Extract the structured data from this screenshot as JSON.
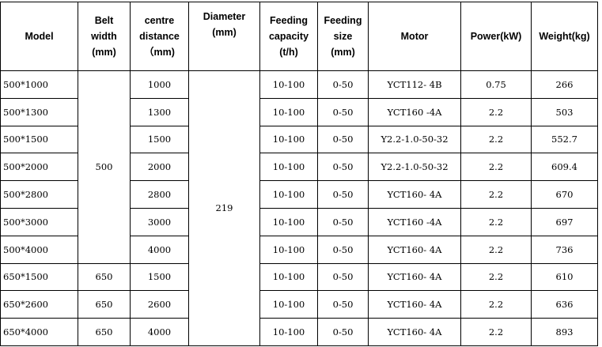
{
  "columns": [
    {
      "line1": "Model",
      "line2": "",
      "line3": ""
    },
    {
      "line1": "Belt",
      "line2": "width",
      "line3": "(mm)"
    },
    {
      "line1": "centre",
      "line2": "distance",
      "line3": "（mm)"
    },
    {
      "line1": "Diameter",
      "line2": "(mm)",
      "line3": ""
    },
    {
      "line1": "Feeding",
      "line2": "capacity",
      "line3": "(t/h)"
    },
    {
      "line1": "Feeding",
      "line2": "size",
      "line3": "(mm)"
    },
    {
      "line1": "Motor",
      "line2": "",
      "line3": ""
    },
    {
      "line1": "Power(kW)",
      "line2": "",
      "line3": ""
    },
    {
      "line1": "Weight(kg)",
      "line2": "",
      "line3": ""
    }
  ],
  "merged": {
    "belt_width_500": "500",
    "diameter": "219"
  },
  "rows": [
    {
      "model": "500*1000",
      "belt": "",
      "centre": "1000",
      "capacity": "10-100",
      "size": "0-50",
      "motor": "YCT112- 4B",
      "power": "0.75",
      "weight": "266"
    },
    {
      "model": "500*1300",
      "belt": "",
      "centre": "1300",
      "capacity": "10-100",
      "size": "0-50",
      "motor": "YCT160 -4A",
      "power": "2.2",
      "weight": "503"
    },
    {
      "model": "500*1500",
      "belt": "",
      "centre": "1500",
      "capacity": "10-100",
      "size": "0-50",
      "motor": "Y2.2-1.0-50-32",
      "power": "2.2",
      "weight": "552.7"
    },
    {
      "model": "500*2000",
      "belt": "",
      "centre": "2000",
      "capacity": "10-100",
      "size": "0-50",
      "motor": "Y2.2-1.0-50-32",
      "power": "2.2",
      "weight": "609.4"
    },
    {
      "model": "500*2800",
      "belt": "",
      "centre": "2800",
      "capacity": "10-100",
      "size": "0-50",
      "motor": "YCT160- 4A",
      "power": "2.2",
      "weight": "670"
    },
    {
      "model": "500*3000",
      "belt": "",
      "centre": "3000",
      "capacity": "10-100",
      "size": "0-50",
      "motor": "YCT160 -4A",
      "power": "2.2",
      "weight": "697"
    },
    {
      "model": "500*4000",
      "belt": "",
      "centre": "4000",
      "capacity": "10-100",
      "size": "0-50",
      "motor": "YCT160- 4A",
      "power": "2.2",
      "weight": "736"
    },
    {
      "model": "650*1500",
      "belt": "650",
      "centre": "1500",
      "capacity": "10-100",
      "size": "0-50",
      "motor": "YCT160- 4A",
      "power": "2.2",
      "weight": "610"
    },
    {
      "model": "650*2600",
      "belt": "650",
      "centre": "2600",
      "capacity": "10-100",
      "size": "0-50",
      "motor": "YCT160- 4A",
      "power": "2.2",
      "weight": "636"
    },
    {
      "model": "650*4000",
      "belt": "650",
      "centre": "4000",
      "capacity": "10-100",
      "size": "0-50",
      "motor": "YCT160- 4A",
      "power": "2.2",
      "weight": "893"
    }
  ]
}
